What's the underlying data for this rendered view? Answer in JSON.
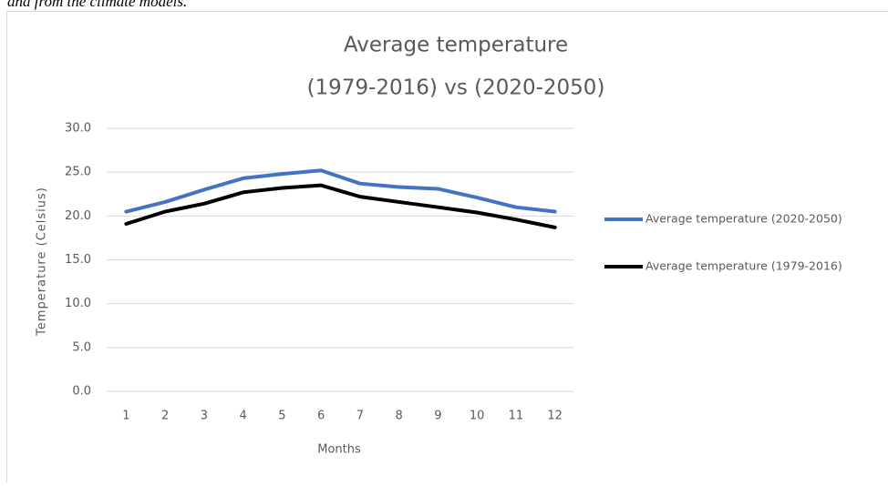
{
  "caption": "and from the climate models.",
  "chart_data": {
    "type": "line",
    "title": [
      "Average temperature",
      "(1979-2016) vs (2020-2050)"
    ],
    "x_label": "Months",
    "y_label": "Temperature (Celsius)",
    "categories": [
      "1",
      "2",
      "3",
      "4",
      "5",
      "6",
      "7",
      "8",
      "9",
      "10",
      "11",
      "12"
    ],
    "series": [
      {
        "name": "Average temperature (2020-2050)",
        "color": "#4472c4",
        "values": [
          20.5,
          21.6,
          23.0,
          24.3,
          24.8,
          25.2,
          23.7,
          23.3,
          23.1,
          22.1,
          21.0,
          20.5
        ]
      },
      {
        "name": "Average temperature (1979-2016)",
        "color": "#000000",
        "values": [
          19.1,
          20.5,
          21.4,
          22.7,
          23.2,
          23.5,
          22.2,
          21.6,
          21.0,
          20.4,
          19.6,
          18.7
        ]
      }
    ],
    "ylim": [
      0,
      30
    ],
    "yticks": [
      {
        "value": 0,
        "label": "0.0"
      },
      {
        "value": 5,
        "label": "5.0"
      },
      {
        "value": 10,
        "label": "10.0"
      },
      {
        "value": 15,
        "label": "15.0"
      },
      {
        "value": 20,
        "label": "20.0"
      },
      {
        "value": 25,
        "label": "25.0"
      },
      {
        "value": 30,
        "label": "30.0"
      }
    ],
    "grid": true,
    "legend": "right"
  }
}
